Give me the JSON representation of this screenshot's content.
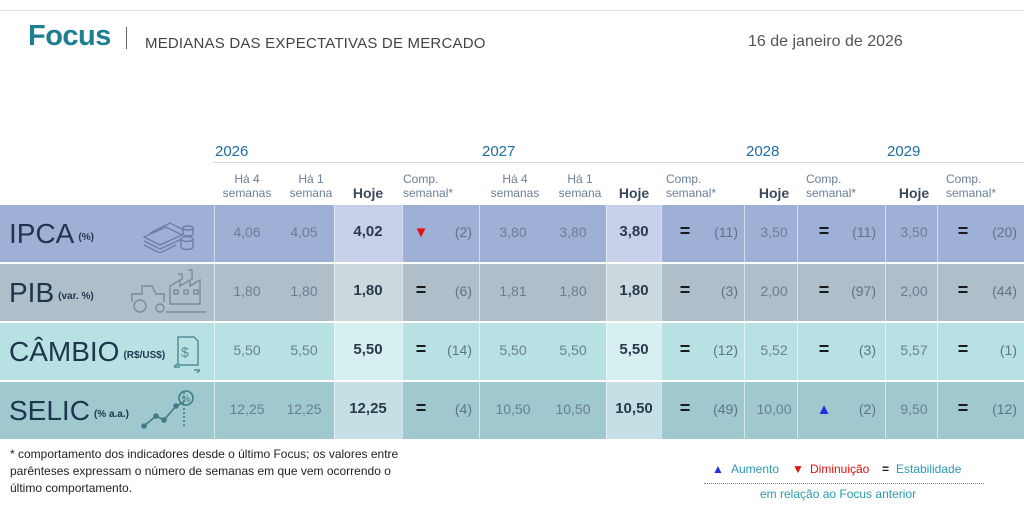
{
  "header": {
    "brand": "Focus",
    "subtitle": "MEDIANAS DAS EXPECTATIVAS DE MERCADO",
    "date": "16 de janeiro de 2026"
  },
  "years": [
    "2026",
    "2027",
    "2028",
    "2029"
  ],
  "columns": {
    "ha4": [
      "Há 4",
      "semanas"
    ],
    "ha1": [
      "Há 1",
      "semana"
    ],
    "hoje": "Hoje",
    "comp": [
      "Comp.",
      "semanal*"
    ]
  },
  "colors": {
    "ipca_band": "#9fb0d6",
    "ipca_shade": "#c7d0e8",
    "pib_band": "#aebfca",
    "pib_shade": "#ccd7de",
    "cambio_band": "#b8e1e3",
    "cambio_shade": "#d6eff0",
    "selic_band": "#9fc8cf",
    "selic_shade": "#c5e0e4",
    "brand": "#1d7f8f",
    "up": "#2b2be0",
    "down": "#e01010",
    "equal": "#1a1a1a"
  },
  "rows": [
    {
      "name": "IPCA",
      "unit": "(%)",
      "icon": "money-stack-icon",
      "y2026": {
        "ha4": "4,06",
        "ha1": "4,05",
        "hoje": "4,02",
        "trend": "down",
        "weeks": "(2)"
      },
      "y2027": {
        "ha4": "3,80",
        "ha1": "3,80",
        "hoje": "3,80",
        "trend": "equal",
        "weeks": "(11)"
      },
      "y2028": {
        "hoje": "3,50",
        "trend": "equal",
        "weeks": "(11)"
      },
      "y2029": {
        "hoje": "3,50",
        "trend": "equal",
        "weeks": "(20)"
      }
    },
    {
      "name": "PIB",
      "unit": "(var. %)",
      "icon": "factory-tractor-icon",
      "y2026": {
        "ha4": "1,80",
        "ha1": "1,80",
        "hoje": "1,80",
        "trend": "equal",
        "weeks": "(6)"
      },
      "y2027": {
        "ha4": "1,81",
        "ha1": "1,80",
        "hoje": "1,80",
        "trend": "equal",
        "weeks": "(3)"
      },
      "y2028": {
        "hoje": "2,00",
        "trend": "equal",
        "weeks": "(97)"
      },
      "y2029": {
        "hoje": "2,00",
        "trend": "equal",
        "weeks": "(44)"
      }
    },
    {
      "name": "CÂMBIO",
      "unit": "(R$/US$)",
      "icon": "dollar-exchange-icon",
      "y2026": {
        "ha4": "5,50",
        "ha1": "5,50",
        "hoje": "5,50",
        "trend": "equal",
        "weeks": "(14)"
      },
      "y2027": {
        "ha4": "5,50",
        "ha1": "5,50",
        "hoje": "5,50",
        "trend": "equal",
        "weeks": "(12)"
      },
      "y2028": {
        "hoje": "5,52",
        "trend": "equal",
        "weeks": "(3)"
      },
      "y2029": {
        "hoje": "5,57",
        "trend": "equal",
        "weeks": "(1)"
      }
    },
    {
      "name": "SELIC",
      "unit": "(% a.a.)",
      "icon": "percent-growth-icon",
      "y2026": {
        "ha4": "12,25",
        "ha1": "12,25",
        "hoje": "12,25",
        "trend": "equal",
        "weeks": "(4)"
      },
      "y2027": {
        "ha4": "10,50",
        "ha1": "10,50",
        "hoje": "10,50",
        "trend": "equal",
        "weeks": "(49)"
      },
      "y2028": {
        "hoje": "10,00",
        "trend": "up",
        "weeks": "(2)"
      },
      "y2029": {
        "hoje": "9,50",
        "trend": "equal",
        "weeks": "(12)"
      }
    }
  ],
  "symbols": {
    "up": "▲",
    "down": "▼",
    "equal": "="
  },
  "footnote": [
    "* comportamento dos indicadores desde o último Focus; os valores entre",
    "parênteses expressam o número de semanas em que vem ocorrendo o",
    "último comportamento."
  ],
  "legend": {
    "up_label": "Aumento",
    "down_label": "Diminuição",
    "equal_label": "Estabilidade",
    "note": "em relação ao Focus anterior"
  }
}
